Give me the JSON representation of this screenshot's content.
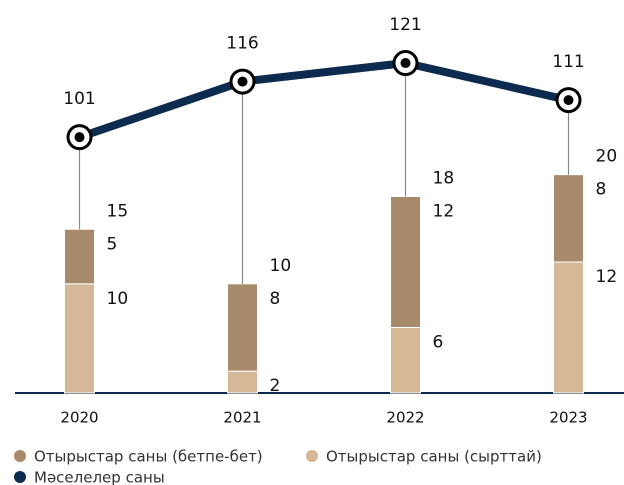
{
  "chart_data": {
    "type": "bar",
    "categories": [
      "2020",
      "2021",
      "2022",
      "2023"
    ],
    "series": [
      {
        "name": "Отырыстар саны (бетпе-бет)",
        "color": "#a68a6a",
        "values": [
          5,
          8,
          12,
          8
        ]
      },
      {
        "name": "Отырыстар саны (сырттай)",
        "color": "#d5b896",
        "values": [
          10,
          2,
          6,
          12
        ]
      },
      {
        "name": "Мәселелер саны",
        "color": "#0d2b4e",
        "values": [
          101,
          116,
          121,
          111
        ],
        "axis": "y2"
      }
    ],
    "totals": [
      15,
      10,
      18,
      20
    ],
    "ylim": [
      0,
      36
    ],
    "y2lim": [
      32,
      138
    ]
  }
}
